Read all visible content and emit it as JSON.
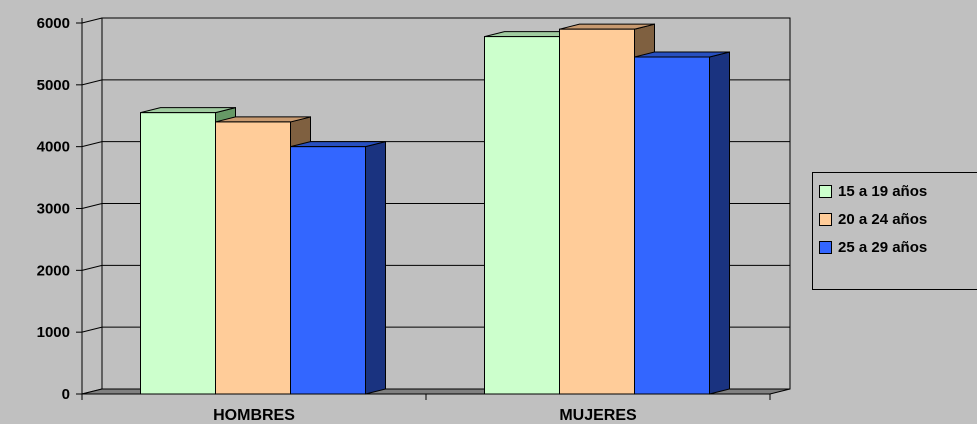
{
  "chart_data": {
    "type": "bar",
    "categories": [
      "HOMBRES",
      "MUJERES"
    ],
    "series": [
      {
        "name": "15 a 19 años",
        "values": [
          4550,
          5780
        ],
        "color": "#ccffcc",
        "side": "#669966",
        "top": "#a0cca0"
      },
      {
        "name": "20 a 24 años",
        "values": [
          4400,
          5900
        ],
        "color": "#ffcc99",
        "side": "#7f6040",
        "top": "#c89a70"
      },
      {
        "name": "25 a 29 años",
        "values": [
          4000,
          5450
        ],
        "color": "#3366ff",
        "side": "#1a3380",
        "top": "#2850c0"
      }
    ],
    "ylim": [
      0,
      6000
    ],
    "yticks": [
      0,
      1000,
      2000,
      3000,
      4000,
      5000,
      6000
    ],
    "grid": true,
    "legend_position": "right",
    "title": "",
    "xlabel": "",
    "ylabel": ""
  }
}
